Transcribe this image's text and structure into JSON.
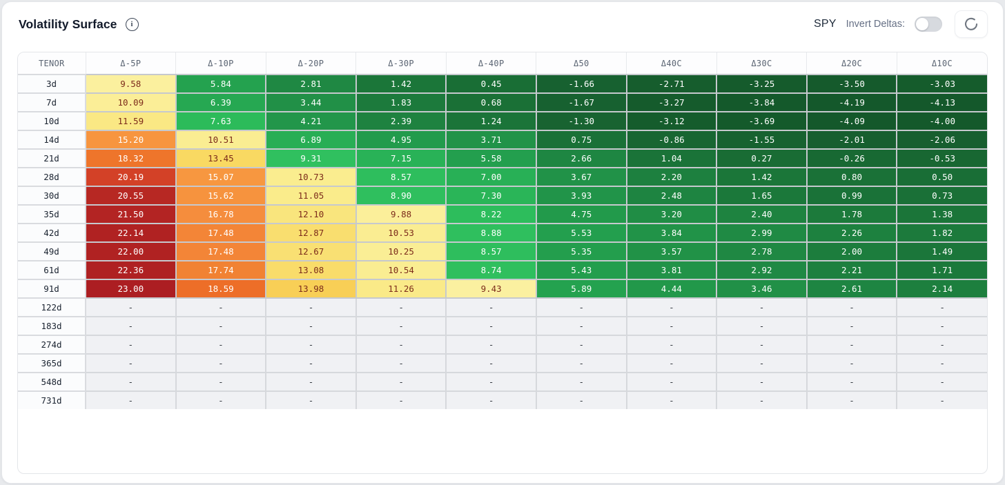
{
  "header": {
    "title": "Volatility Surface",
    "symbol": "SPY",
    "invert_label": "Invert Deltas:",
    "invert_toggle_state": "off",
    "icons": [
      "info-icon",
      "refresh-icon"
    ]
  },
  "table": {
    "columns": [
      "TENOR",
      "Δ-5P",
      "Δ-10P",
      "Δ-20P",
      "Δ-30P",
      "Δ-40P",
      "Δ50",
      "Δ40C",
      "Δ30C",
      "Δ20C",
      "Δ10C"
    ],
    "empty_placeholder": "-",
    "rows": [
      {
        "tenor": "3d",
        "values": [
          9.58,
          5.84,
          2.81,
          1.42,
          0.45,
          -1.66,
          -2.71,
          -3.25,
          -3.5,
          -3.03
        ]
      },
      {
        "tenor": "7d",
        "values": [
          10.09,
          6.39,
          3.44,
          1.83,
          0.68,
          -1.67,
          -3.27,
          -3.84,
          -4.19,
          -4.13
        ]
      },
      {
        "tenor": "10d",
        "values": [
          11.59,
          7.63,
          4.21,
          2.39,
          1.24,
          -1.3,
          -3.12,
          -3.69,
          -4.09,
          -4.0
        ]
      },
      {
        "tenor": "14d",
        "values": [
          15.2,
          10.51,
          6.89,
          4.95,
          3.71,
          0.75,
          -0.86,
          -1.55,
          -2.01,
          -2.06
        ]
      },
      {
        "tenor": "21d",
        "values": [
          18.32,
          13.45,
          9.31,
          7.15,
          5.58,
          2.66,
          1.04,
          0.27,
          -0.26,
          -0.53
        ]
      },
      {
        "tenor": "28d",
        "values": [
          20.19,
          15.07,
          10.73,
          8.57,
          7.0,
          3.67,
          2.2,
          1.42,
          0.8,
          0.5
        ]
      },
      {
        "tenor": "30d",
        "values": [
          20.55,
          15.62,
          11.05,
          8.9,
          7.3,
          3.93,
          2.48,
          1.65,
          0.99,
          0.73
        ]
      },
      {
        "tenor": "35d",
        "values": [
          21.5,
          16.78,
          12.1,
          9.88,
          8.22,
          4.75,
          3.2,
          2.4,
          1.78,
          1.38
        ]
      },
      {
        "tenor": "42d",
        "values": [
          22.14,
          17.48,
          12.87,
          10.53,
          8.88,
          5.53,
          3.84,
          2.99,
          2.26,
          1.82
        ]
      },
      {
        "tenor": "49d",
        "values": [
          22.0,
          17.48,
          12.67,
          10.25,
          8.57,
          5.35,
          3.57,
          2.78,
          2.0,
          1.49
        ]
      },
      {
        "tenor": "61d",
        "values": [
          22.36,
          17.74,
          13.08,
          10.54,
          8.74,
          5.43,
          3.81,
          2.92,
          2.21,
          1.71
        ]
      },
      {
        "tenor": "91d",
        "values": [
          23.0,
          18.59,
          13.98,
          11.26,
          9.43,
          5.89,
          4.44,
          3.46,
          2.61,
          2.14
        ]
      },
      {
        "tenor": "122d",
        "values": [
          null,
          null,
          null,
          null,
          null,
          null,
          null,
          null,
          null,
          null
        ]
      },
      {
        "tenor": "183d",
        "values": [
          null,
          null,
          null,
          null,
          null,
          null,
          null,
          null,
          null,
          null
        ]
      },
      {
        "tenor": "274d",
        "values": [
          null,
          null,
          null,
          null,
          null,
          null,
          null,
          null,
          null,
          null
        ]
      },
      {
        "tenor": "365d",
        "values": [
          null,
          null,
          null,
          null,
          null,
          null,
          null,
          null,
          null,
          null
        ]
      },
      {
        "tenor": "548d",
        "values": [
          null,
          null,
          null,
          null,
          null,
          null,
          null,
          null,
          null,
          null
        ]
      },
      {
        "tenor": "731d",
        "values": [
          null,
          null,
          null,
          null,
          null,
          null,
          null,
          null,
          null,
          null
        ]
      }
    ]
  },
  "heatmap": {
    "stops": [
      [
        -4.2,
        "#14582B"
      ],
      [
        -3.0,
        "#155C2C"
      ],
      [
        -2.0,
        "#175F2F"
      ],
      [
        -1.0,
        "#186532"
      ],
      [
        0.0,
        "#186A33"
      ],
      [
        0.8,
        "#1A7137"
      ],
      [
        1.6,
        "#1B773A"
      ],
      [
        2.5,
        "#1E8441"
      ],
      [
        3.5,
        "#219147"
      ],
      [
        4.6,
        "#22994B"
      ],
      [
        5.7,
        "#23A04E"
      ],
      [
        6.8,
        "#27AC54"
      ],
      [
        7.7,
        "#2CBC5B"
      ],
      [
        9.35,
        "#30C05F"
      ],
      [
        9.4,
        "#FBF0A0"
      ],
      [
        11.0,
        "#FAEC8C"
      ],
      [
        12.5,
        "#F9E277"
      ],
      [
        13.6,
        "#F9D75F"
      ],
      [
        14.3,
        "#F8C94F"
      ],
      [
        15.1,
        "#F7953F"
      ],
      [
        17.0,
        "#F58C3D"
      ],
      [
        18.0,
        "#F07E30"
      ],
      [
        18.7,
        "#EC6B26"
      ],
      [
        19.6,
        "#E15425"
      ],
      [
        20.25,
        "#D23F27"
      ],
      [
        20.55,
        "#B72823"
      ],
      [
        23.0,
        "#AC1E22"
      ]
    ],
    "dark_text_range": [
      9.4,
      14.65
    ],
    "dark_text_color": "#7C2B1B",
    "light_text_color": "#FFFFFF"
  }
}
